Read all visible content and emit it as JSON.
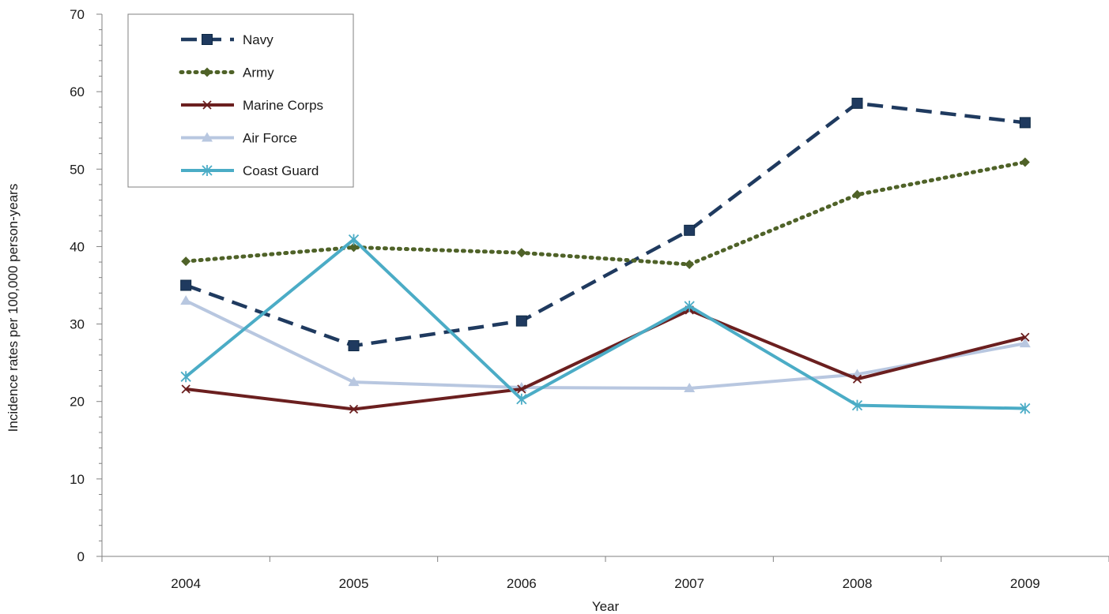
{
  "chart_data": {
    "type": "line",
    "title": "",
    "xlabel": "Year",
    "ylabel": "Incidence rates per 100,000 person-years",
    "categories": [
      "2004",
      "2005",
      "2006",
      "2007",
      "2008",
      "2009"
    ],
    "ylim": [
      0,
      70
    ],
    "yticks": [
      "0",
      "10",
      "20",
      "30",
      "40",
      "50",
      "60",
      "70"
    ],
    "grid": false,
    "legend_position": "top-left",
    "series": [
      {
        "name": "Navy",
        "values": [
          35.0,
          27.2,
          30.4,
          42.1,
          58.5,
          56.0
        ],
        "color": "#1f3a5f",
        "dash": "dash",
        "marker": "square"
      },
      {
        "name": "Army",
        "values": [
          38.1,
          39.9,
          39.2,
          37.7,
          46.7,
          50.9
        ],
        "color": "#4f6228",
        "dash": "dot",
        "marker": "diamond"
      },
      {
        "name": "Marine Corps",
        "values": [
          21.6,
          19.0,
          21.6,
          31.8,
          22.9,
          28.3
        ],
        "color": "#6b1f1f",
        "dash": "solid",
        "marker": "x"
      },
      {
        "name": "Air Force",
        "values": [
          33.0,
          22.5,
          21.8,
          21.7,
          23.5,
          27.5
        ],
        "color": "#b8c7e0",
        "dash": "solid",
        "marker": "triangle"
      },
      {
        "name": "Coast Guard",
        "values": [
          23.2,
          40.9,
          20.3,
          32.3,
          19.5,
          19.1
        ],
        "color": "#4bacc6",
        "dash": "solid",
        "marker": "star"
      }
    ]
  }
}
